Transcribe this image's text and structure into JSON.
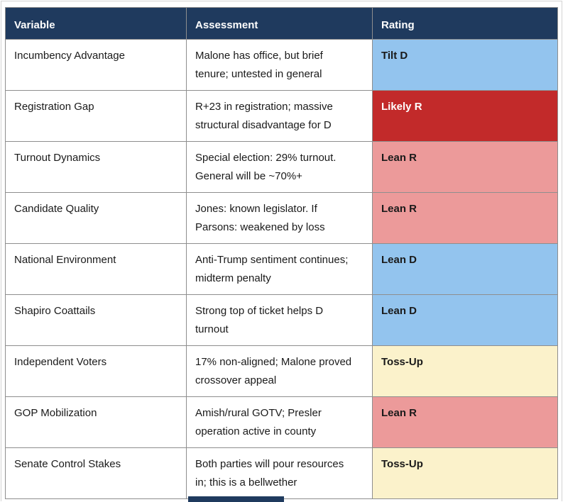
{
  "colors": {
    "header_bg": "#1F3A5E",
    "header_text": "#FFFFFF",
    "border": "#8E8E8E",
    "page_edge": "#D4D4D4",
    "body_text": "#1A1A1A",
    "rating_blue": "#93C4EE",
    "rating_dark_red": "#C22A2A",
    "rating_pink": "#EC9A9A",
    "rating_yellow": "#FBF2CB"
  },
  "table": {
    "columns": [
      "Variable",
      "Assessment",
      "Rating"
    ],
    "rows": [
      {
        "variable": "Incumbency Advantage",
        "assessment": "Malone has office, but brief\ntenure; untested in general",
        "rating": "Tilt D",
        "rating_bg": "#93C4EE",
        "rating_fg": "#1A1A1A"
      },
      {
        "variable": "Registration Gap",
        "assessment": "R+23 in registration; massive\nstructural disadvantage for D",
        "rating": "Likely R",
        "rating_bg": "#C22A2A",
        "rating_fg": "#FFFFFF"
      },
      {
        "variable": "Turnout Dynamics",
        "assessment": "Special election: 29% turnout.\nGeneral will be ~70%+",
        "rating": "Lean R",
        "rating_bg": "#EC9A9A",
        "rating_fg": "#1A1A1A"
      },
      {
        "variable": "Candidate Quality",
        "assessment": "Jones: known legislator. If\nParsons: weakened by loss",
        "rating": "Lean R",
        "rating_bg": "#EC9A9A",
        "rating_fg": "#1A1A1A"
      },
      {
        "variable": "National Environment",
        "assessment": "Anti-Trump sentiment continues;\nmidterm penalty",
        "rating": "Lean D",
        "rating_bg": "#93C4EE",
        "rating_fg": "#1A1A1A"
      },
      {
        "variable": "Shapiro Coattails",
        "assessment": "Strong top of ticket helps D\nturnout",
        "rating": "Lean D",
        "rating_bg": "#93C4EE",
        "rating_fg": "#1A1A1A"
      },
      {
        "variable": "Independent Voters",
        "assessment": "17% non-aligned; Malone proved\ncrossover appeal",
        "rating": "Toss-Up",
        "rating_bg": "#FBF2CB",
        "rating_fg": "#1A1A1A"
      },
      {
        "variable": "GOP Mobilization",
        "assessment": "Amish/rural GOTV; Presler\noperation active in county",
        "rating": "Lean R",
        "rating_bg": "#EC9A9A",
        "rating_fg": "#1A1A1A"
      },
      {
        "variable": "Senate Control Stakes",
        "assessment": "Both parties will pour resources\nin; this is a bellwether",
        "rating": "Toss-Up",
        "rating_bg": "#FBF2CB",
        "rating_fg": "#1A1A1A"
      }
    ]
  }
}
